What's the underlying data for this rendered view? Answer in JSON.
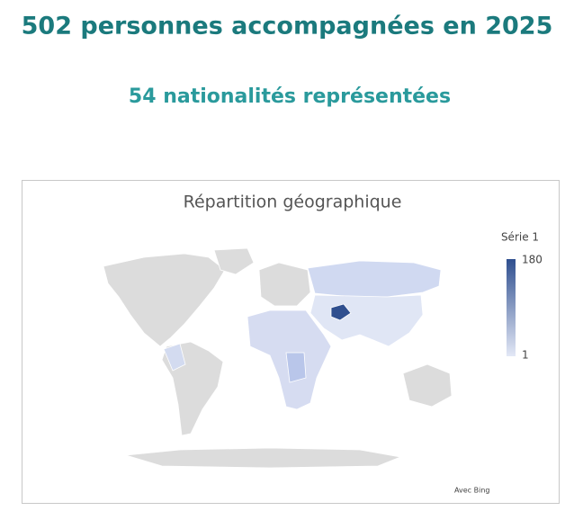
{
  "header": {
    "title": "502 personnes accompagnées en 2025",
    "subtitle": "54 nationalités représentées"
  },
  "chart_data": {
    "type": "map",
    "title": "Répartition géographique",
    "legend_title": "Série 1",
    "scale": {
      "min": 1,
      "max": 180,
      "colors": [
        "#e3e8f6",
        "#2f4f8f"
      ]
    },
    "attribution": "Avec Bing"
  }
}
